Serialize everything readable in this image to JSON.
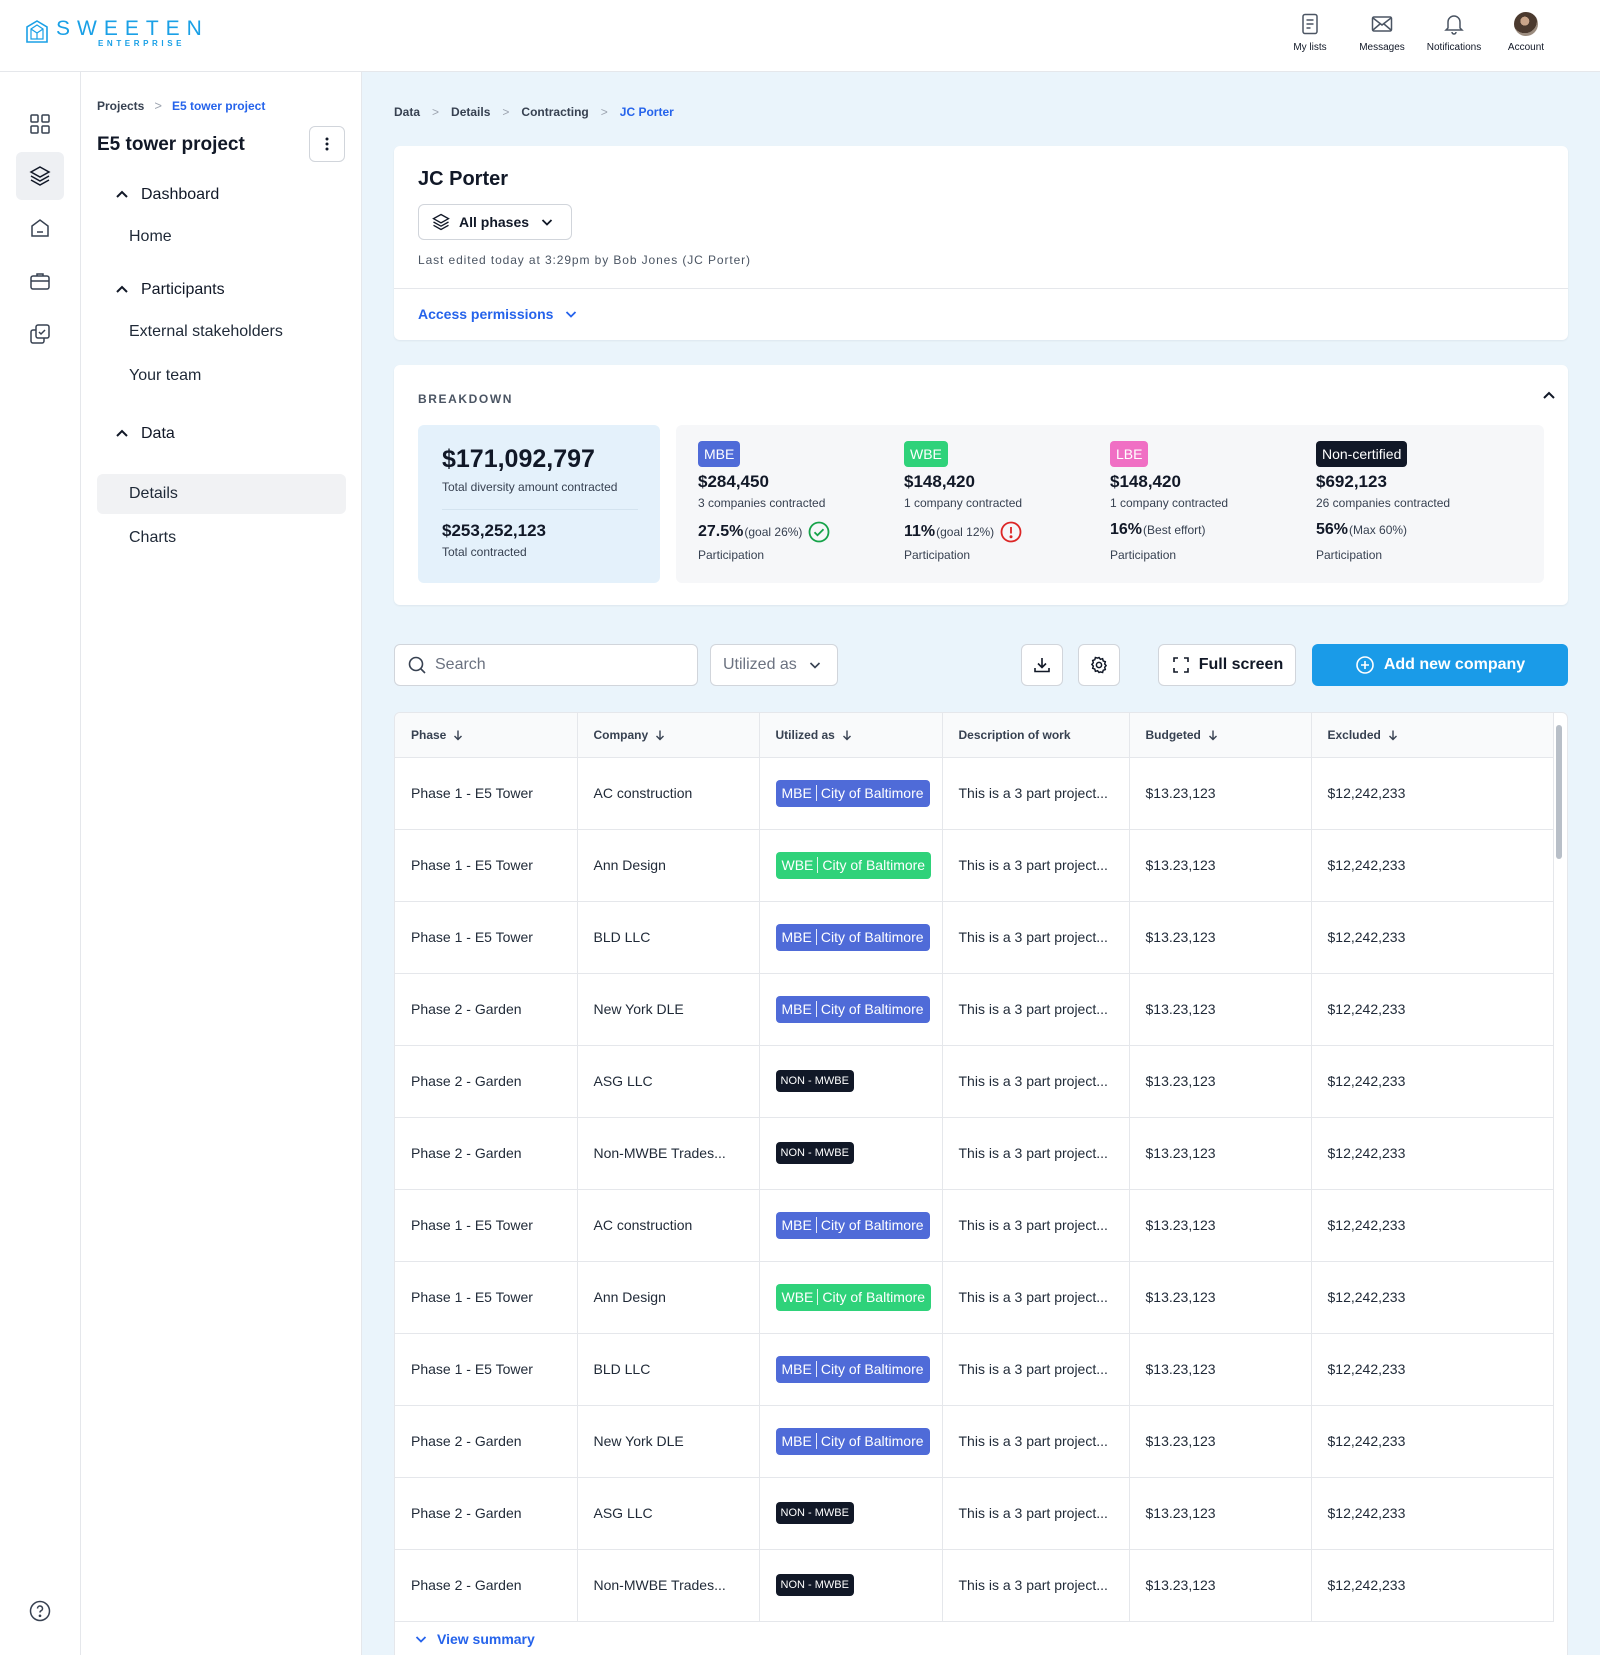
{
  "brand": {
    "name": "SWEETEN",
    "sub": "ENTERPRISE",
    "color": "#1aa0e6"
  },
  "topnav": [
    {
      "label": "My lists",
      "icon": "list-icon"
    },
    {
      "label": "Messages",
      "icon": "envelope-icon"
    },
    {
      "label": "Notifications",
      "icon": "bell-icon"
    },
    {
      "label": "Account",
      "icon": "avatar"
    }
  ],
  "rail": [
    "grid-icon",
    "layers-icon",
    "home-icon",
    "briefcase-icon",
    "checklist-icon",
    "help-icon"
  ],
  "sidebar": {
    "breadcrumb": [
      "Projects",
      "E5 tower project"
    ],
    "title": "E5 tower project",
    "sections": [
      {
        "label": "Dashboard",
        "items": [
          "Home"
        ]
      },
      {
        "label": "Participants",
        "items": [
          "External stakeholders",
          "Your team"
        ]
      },
      {
        "label": "Data",
        "items": [
          "Details",
          "Charts"
        ]
      }
    ],
    "active_item": "Details"
  },
  "breadcrumb": [
    "Data",
    "Details",
    "Contracting",
    "JC Porter"
  ],
  "header": {
    "title": "JC Porter",
    "phase_select": "All phases",
    "last_edited": "Last edited today at 3:29pm by Bob Jones (JC Porter)",
    "access": "Access permissions"
  },
  "breakdown": {
    "label": "BREAKDOWN",
    "total_diversity": "$171,092,797",
    "total_diversity_label": "Total diversity amount contracted",
    "total_contracted": "$253,252,123",
    "total_contracted_label": "Total contracted",
    "categories": [
      {
        "tag": "MBE",
        "color": "#4f6bd8",
        "amount": "$284,450",
        "companies": "3 companies contracted",
        "pct": "27.5%",
        "goal": "(goal 26%)",
        "status": "check-circle-icon",
        "part": "Participation"
      },
      {
        "tag": "WBE",
        "color": "#2fd27a",
        "amount": "$148,420",
        "companies": "1 company contracted",
        "pct": "11%",
        "goal": "(goal 12%)",
        "status": "alert-circle-icon",
        "part": "Participation"
      },
      {
        "tag": "LBE",
        "color": "#f06fc4",
        "amount": "$148,420",
        "companies": "1 company contracted",
        "pct": "16%",
        "goal": "(Best effort)",
        "status": "",
        "part": "Participation"
      },
      {
        "tag": "Non-certified",
        "color": "#111827",
        "amount": "$692,123",
        "companies": "26 companies contracted",
        "pct": "56%",
        "goal": "(Max 60%)",
        "status": "",
        "part": "Participation"
      }
    ]
  },
  "toolbar": {
    "search_placeholder": "Search",
    "utilized_select": "Utilized as",
    "fullscreen": "Full screen",
    "add": "Add new company"
  },
  "table": {
    "columns": [
      "Phase",
      "Company",
      "Utilized as",
      "Description of work",
      "Budgeted",
      "Excluded"
    ],
    "rows": [
      {
        "phase": "Phase 1 - E5 Tower",
        "company": "AC construction",
        "type": "MBE",
        "agency": "City of Baltimore",
        "desc": "This is a 3 part project...",
        "budgeted": "$13.23,123",
        "excluded": "$12,242,233"
      },
      {
        "phase": "Phase 1 - E5 Tower",
        "company": "Ann Design",
        "type": "WBE",
        "agency": "City of Baltimore",
        "desc": "This is a 3 part project...",
        "budgeted": "$13.23,123",
        "excluded": "$12,242,233"
      },
      {
        "phase": "Phase 1 - E5 Tower",
        "company": "BLD LLC",
        "type": "MBE",
        "agency": "City of Baltimore",
        "desc": "This is a 3 part project...",
        "budgeted": "$13.23,123",
        "excluded": "$12,242,233"
      },
      {
        "phase": "Phase 2 - Garden",
        "company": "New York DLE",
        "type": "MBE",
        "agency": "City of Baltimore",
        "desc": "This is a 3 part project...",
        "budgeted": "$13.23,123",
        "excluded": "$12,242,233"
      },
      {
        "phase": "Phase 2 - Garden",
        "company": "ASG LLC",
        "type": "NON - MWBE",
        "agency": "",
        "desc": "This is a 3 part project...",
        "budgeted": "$13.23,123",
        "excluded": "$12,242,233"
      },
      {
        "phase": "Phase 2 - Garden",
        "company": "Non-MWBE Trades...",
        "type": "NON - MWBE",
        "agency": "",
        "desc": "This is a 3 part project...",
        "budgeted": "$13.23,123",
        "excluded": "$12,242,233"
      },
      {
        "phase": "Phase 1 - E5 Tower",
        "company": "AC construction",
        "type": "MBE",
        "agency": "City of Baltimore",
        "desc": "This is a 3 part project...",
        "budgeted": "$13.23,123",
        "excluded": "$12,242,233"
      },
      {
        "phase": "Phase 1 - E5 Tower",
        "company": "Ann Design",
        "type": "WBE",
        "agency": "City of Baltimore",
        "desc": "This is a 3 part project...",
        "budgeted": "$13.23,123",
        "excluded": "$12,242,233"
      },
      {
        "phase": "Phase 1 - E5 Tower",
        "company": "BLD LLC",
        "type": "MBE",
        "agency": "City of Baltimore",
        "desc": "This is a 3 part project...",
        "budgeted": "$13.23,123",
        "excluded": "$12,242,233"
      },
      {
        "phase": "Phase 2 - Garden",
        "company": "New York DLE",
        "type": "MBE",
        "agency": "City of Baltimore",
        "desc": "This is a 3 part project...",
        "budgeted": "$13.23,123",
        "excluded": "$12,242,233"
      },
      {
        "phase": "Phase 2 - Garden",
        "company": "ASG LLC",
        "type": "NON - MWBE",
        "agency": "",
        "desc": "This is a 3 part project...",
        "budgeted": "$13.23,123",
        "excluded": "$12,242,233"
      },
      {
        "phase": "Phase 2 - Garden",
        "company": "Non-MWBE Trades...",
        "type": "NON - MWBE",
        "agency": "",
        "desc": "This is a 3 part project...",
        "budgeted": "$13.23,123",
        "excluded": "$12,242,233"
      }
    ],
    "view_summary": "View summary"
  }
}
